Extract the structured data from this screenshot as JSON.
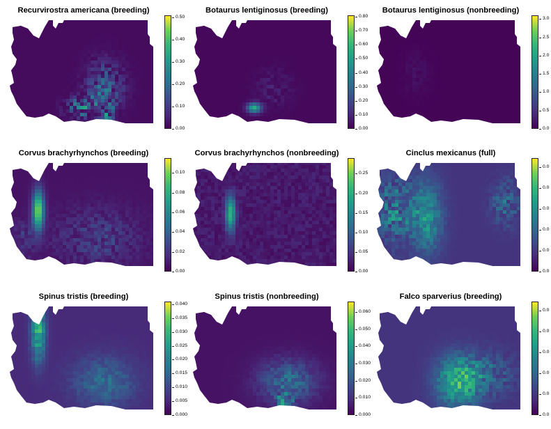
{
  "panels": [
    {
      "title": "Recurvirostra americana (breeding)",
      "ticks": [
        "0.00",
        "0.10",
        "0.20",
        "0.30",
        "0.40",
        "0.50"
      ],
      "max": 0.51,
      "pattern": "avocet"
    },
    {
      "title": "Botaurus lentiginosus (breeding)",
      "ticks": [
        "0.00",
        "0.10",
        "0.20",
        "0.30",
        "0.40",
        "0.50",
        "0.60",
        "0.70",
        "0.80"
      ],
      "max": 0.81,
      "pattern": "bittern-b"
    },
    {
      "title": "Botaurus lentiginosus (nonbreeding)",
      "ticks": [
        "0.0",
        "0.5",
        "1.0",
        "1.5",
        "2.0",
        "2.5",
        "3.0"
      ],
      "max": 3.1,
      "pattern": "bittern-nb"
    },
    {
      "title": "Corvus brachyrhynchos (breeding)",
      "ticks": [
        "0.00",
        "0.02",
        "0.04",
        "0.06",
        "0.08",
        "0.10"
      ],
      "max": 0.115,
      "pattern": "crow-b"
    },
    {
      "title": "Corvus brachyrhynchos (nonbreeding)",
      "ticks": [
        "0.00",
        "0.05",
        "0.10",
        "0.15",
        "0.20",
        "0.25"
      ],
      "max": 0.29,
      "pattern": "crow-nb"
    },
    {
      "title": "Cinclus mexicanus (full)",
      "ticks": [
        "0.0",
        "0.0",
        "0.0",
        "0.0",
        "0.0",
        "0.0"
      ],
      "max": 1.0,
      "pattern": "dipper",
      "clipped": true
    },
    {
      "title": "Spinus tristis (breeding)",
      "ticks": [
        "0.000",
        "0.005",
        "0.010",
        "0.015",
        "0.020",
        "0.025",
        "0.030",
        "0.035",
        "0.040"
      ],
      "max": 0.041,
      "pattern": "goldfinch-b"
    },
    {
      "title": "Spinus tristis (nonbreeding)",
      "ticks": [
        "0.000",
        "0.010",
        "0.020",
        "0.030",
        "0.040",
        "0.050",
        "0.060"
      ],
      "max": 0.066,
      "pattern": "goldfinch-nb"
    },
    {
      "title": "Falco sparverius (breeding)",
      "ticks": [
        "0.0",
        "0.0",
        "0.0",
        "0.0",
        "0.0",
        "0.0"
      ],
      "max": 1.0,
      "pattern": "kestrel",
      "clipped": true
    }
  ]
}
